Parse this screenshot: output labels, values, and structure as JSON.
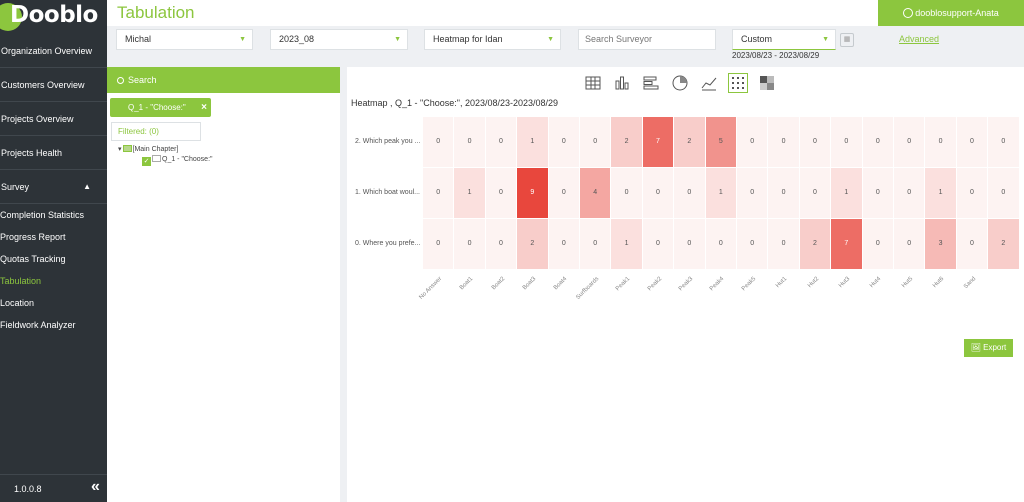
{
  "sidebar": {
    "logo": "Dooblo",
    "items": [
      {
        "label": "Organization Overview"
      },
      {
        "label": "Customers Overview"
      },
      {
        "label": "Projects Overview"
      },
      {
        "label": "Projects Health"
      },
      {
        "label": "Survey"
      }
    ],
    "subitems": [
      {
        "label": "Completion Statistics"
      },
      {
        "label": "Progress Report"
      },
      {
        "label": "Quotas Tracking"
      },
      {
        "label": "Tabulation"
      },
      {
        "label": "Location"
      },
      {
        "label": "Fieldwork Analyzer"
      }
    ],
    "active": "Tabulation",
    "version": "1.0.0.8"
  },
  "header": {
    "title": "Tabulation",
    "user": "dooblosupport-Anata"
  },
  "filters": {
    "organization": "Michal",
    "project": "2023_08",
    "report": "Heatmap for Idan",
    "surveyor_placeholder": "Search Surveyor",
    "date_mode": "Custom",
    "date_range": "2023/08/23 - 2023/08/29",
    "advanced": "Advanced"
  },
  "left_panel": {
    "search_label": "Search",
    "chip_label": "Q_1 - \"Choose:\"",
    "filtered_label": "Filtered: (0)",
    "tree_root": "[Main Chapter]",
    "tree_child": "Q_1 - \"Choose:\""
  },
  "main": {
    "chart_types": [
      "table",
      "bar",
      "horizontal-bar",
      "pie",
      "line",
      "scatter",
      "heatmap"
    ],
    "selected_chart": "scatter",
    "export_label": "Export"
  },
  "chart_data": {
    "type": "heatmap",
    "title": "Heatmap , Q_1 - \"Choose:\", 2023/08/23-2023/08/29",
    "rows": [
      "2. Which peak you ...",
      "1. Which boat woul...",
      "0. Where you prefe..."
    ],
    "columns": [
      "No Answer",
      "Boat1",
      "Boat2",
      "Boat3",
      "Boat4",
      "Surfboards",
      "Peak1",
      "Peak2",
      "Peak3",
      "Peak4",
      "Peak5",
      "Hut1",
      "Hut2",
      "Hut3",
      "Hut4",
      "Hut5",
      "Hut6",
      "Sand",
      ""
    ],
    "values": [
      [
        0,
        0,
        0,
        1,
        0,
        0,
        2,
        7,
        2,
        5,
        0,
        0,
        0,
        0,
        0,
        0,
        0,
        0,
        0
      ],
      [
        0,
        1,
        0,
        9,
        0,
        4,
        0,
        0,
        0,
        1,
        0,
        0,
        0,
        1,
        0,
        0,
        1,
        0,
        0
      ],
      [
        0,
        0,
        0,
        2,
        0,
        0,
        1,
        0,
        0,
        0,
        0,
        0,
        2,
        7,
        0,
        0,
        3,
        0,
        2
      ]
    ],
    "color_low": "#fdf3f2",
    "color_high": "#e8473d"
  }
}
